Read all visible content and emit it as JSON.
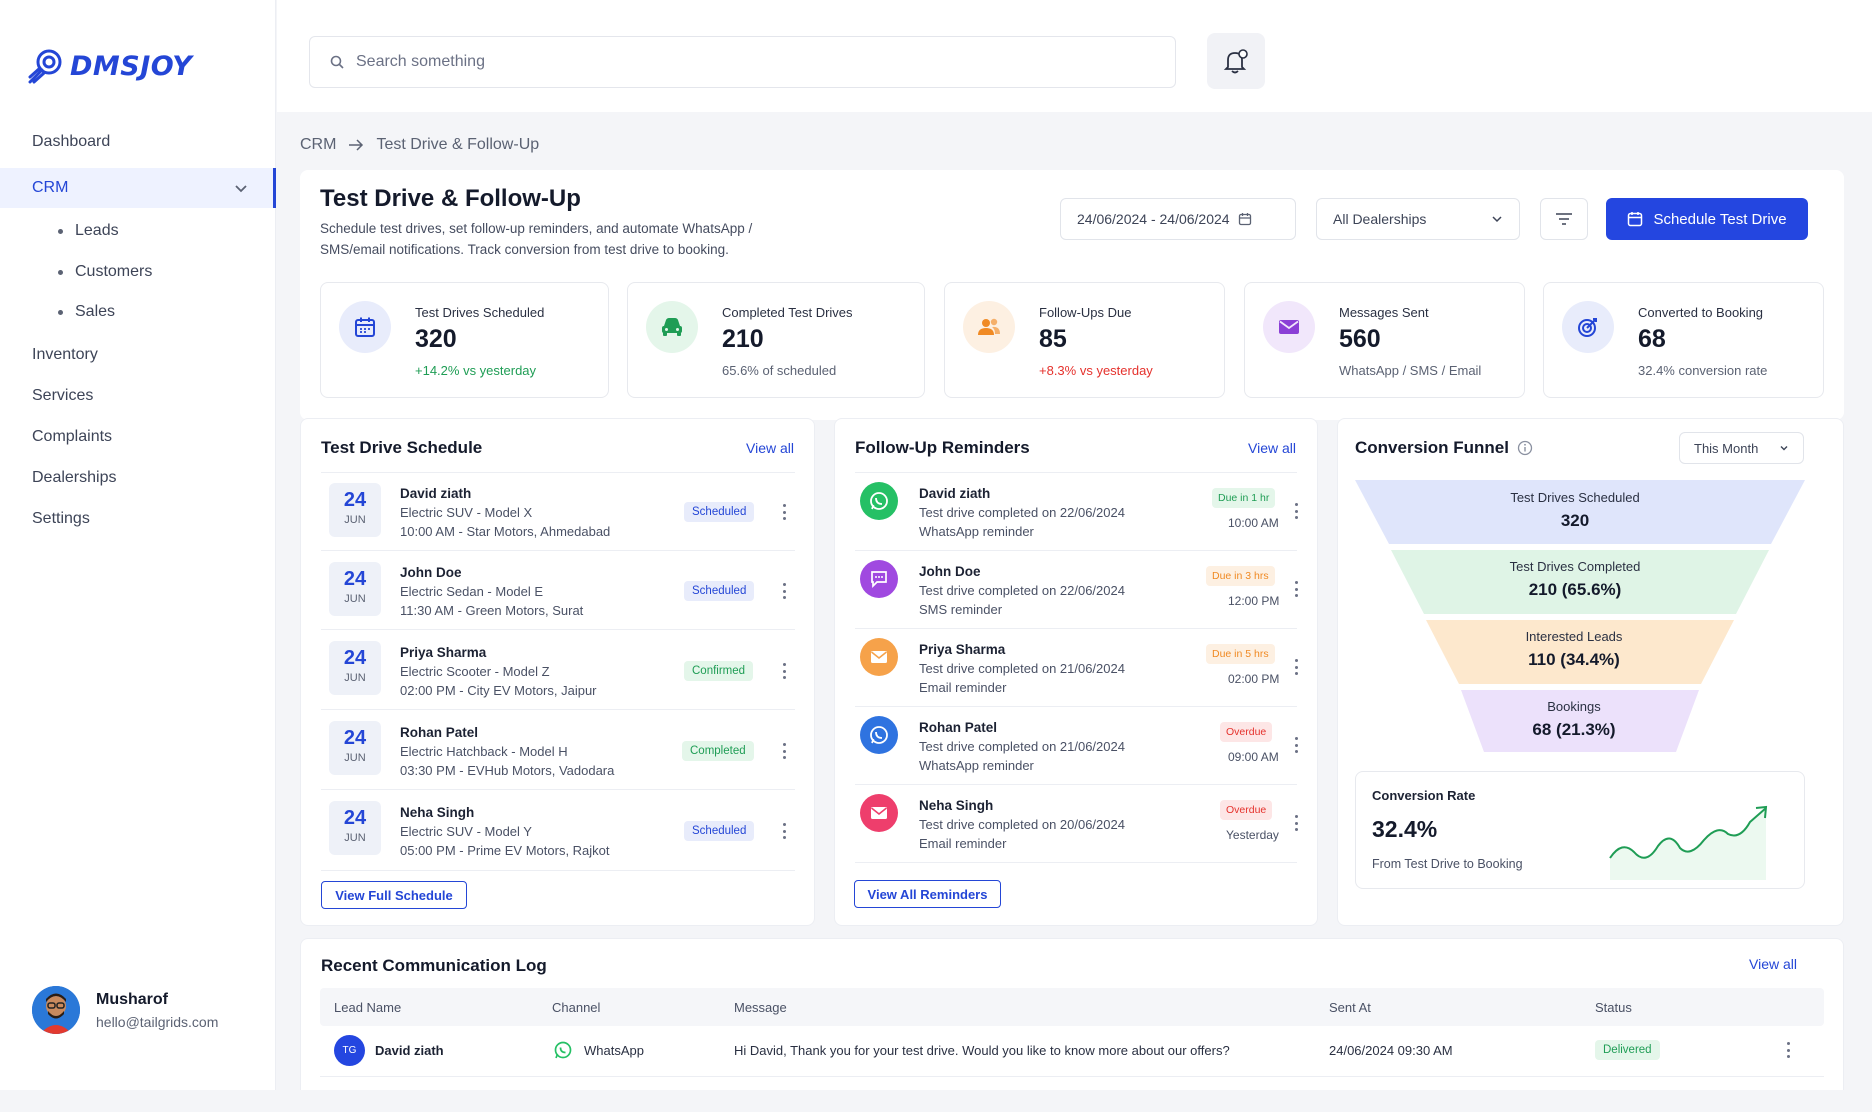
{
  "app": {
    "name": "DMSJOY"
  },
  "sidebar": {
    "items": [
      {
        "label": "Dashboard"
      },
      {
        "label": "CRM"
      },
      {
        "label": "Inventory"
      },
      {
        "label": "Services"
      },
      {
        "label": "Complaints"
      },
      {
        "label": "Dealerships"
      },
      {
        "label": "Settings"
      }
    ],
    "crm_sub": [
      {
        "label": "Leads"
      },
      {
        "label": "Customers"
      },
      {
        "label": "Sales"
      }
    ],
    "user": {
      "name": "Musharof",
      "email": "hello@tailgrids.com"
    }
  },
  "search": {
    "placeholder": "Search something"
  },
  "breadcrumb": {
    "root": "CRM",
    "current": "Test Drive & Follow-Up"
  },
  "page": {
    "title": "Test Drive & Follow-Up",
    "subtitle_line1": "Schedule test drives, set follow-up reminders, and automate WhatsApp /",
    "subtitle_line2": "SMS/email notifications. Track conversion from test drive to booking.",
    "date_range": "24/06/2024 - 24/06/2024",
    "dealership_select": "All Dealerships",
    "primary_button": "Schedule Test Drive"
  },
  "kpis": [
    {
      "label": "Test Drives Scheduled",
      "value": "320",
      "sub": "+14.2% vs yesterday",
      "icon": "calendar-icon"
    },
    {
      "label": "Completed Test Drives",
      "value": "210",
      "sub": "65.6% of scheduled",
      "icon": "car-icon"
    },
    {
      "label": "Follow-Ups Due",
      "value": "85",
      "sub": "+8.3% vs yesterday",
      "icon": "users-icon"
    },
    {
      "label": "Messages Sent",
      "value": "560",
      "sub": "WhatsApp / SMS / Email",
      "icon": "envelope-icon"
    },
    {
      "label": "Converted to Booking",
      "value": "68",
      "sub": "32.4% conversion rate",
      "icon": "target-icon"
    }
  ],
  "schedule": {
    "title": "Test Drive Schedule",
    "view_all": "View all",
    "button": "View Full Schedule",
    "rows": [
      {
        "day": "24",
        "month": "JUN",
        "name": "David ziath",
        "model": "Electric SUV - Model X",
        "time": "10:00 AM - Star Motors, Ahmedabad",
        "status": "Scheduled"
      },
      {
        "day": "24",
        "month": "JUN",
        "name": "John Doe",
        "model": "Electric Sedan - Model E",
        "time": "11:30 AM - Green Motors, Surat",
        "status": "Scheduled"
      },
      {
        "day": "24",
        "month": "JUN",
        "name": "Priya Sharma",
        "model": "Electric Scooter - Model Z",
        "time": "02:00 PM - City EV Motors, Jaipur",
        "status": "Confirmed"
      },
      {
        "day": "24",
        "month": "JUN",
        "name": "Rohan Patel",
        "model": "Electric Hatchback - Model H",
        "time": "03:30 PM - EVHub Motors, Vadodara",
        "status": "Completed"
      },
      {
        "day": "24",
        "month": "JUN",
        "name": "Neha Singh",
        "model": "Electric SUV - Model Y",
        "time": "05:00 PM - Prime EV Motors, Rajkot",
        "status": "Scheduled"
      }
    ]
  },
  "reminders": {
    "title": "Follow-Up Reminders",
    "view_all": "View all",
    "button": "View All Reminders",
    "rows": [
      {
        "name": "David ziath",
        "detail": "Test drive completed on 22/06/2024",
        "channel": "WhatsApp reminder",
        "due": "Due in 1 hr",
        "time": "10:00 AM",
        "icon": "whatsapp-icon"
      },
      {
        "name": "John Doe",
        "detail": "Test drive completed on 22/06/2024",
        "channel": "SMS reminder",
        "due": "Due in 3 hrs",
        "time": "12:00 PM",
        "icon": "sms-icon"
      },
      {
        "name": "Priya Sharma",
        "detail": "Test drive completed on 21/06/2024",
        "channel": "Email reminder",
        "due": "Due in 5 hrs",
        "time": "02:00 PM",
        "icon": "email-icon"
      },
      {
        "name": "Rohan Patel",
        "detail": "Test drive completed on 21/06/2024",
        "channel": "WhatsApp reminder",
        "due": "Overdue",
        "time": "09:00 AM",
        "icon": "whatsapp-icon"
      },
      {
        "name": "Neha Singh",
        "detail": "Test drive completed on 20/06/2024",
        "channel": "Email reminder",
        "due": "Overdue",
        "time": "Yesterday",
        "icon": "email-icon"
      }
    ]
  },
  "funnel": {
    "title": "Conversion Funnel",
    "period": "This Month",
    "stages": [
      {
        "label": "Test Drives Scheduled",
        "value": "320"
      },
      {
        "label": "Test Drives Completed",
        "value": "210 (65.6%)"
      },
      {
        "label": "Interested Leads",
        "value": "110 (34.4%)"
      },
      {
        "label": "Bookings",
        "value": "68 (21.3%)"
      }
    ],
    "rate_title": "Conversion Rate",
    "rate_value": "32.4%",
    "rate_sub": "From Test Drive to Booking"
  },
  "log": {
    "title": "Recent Communication Log",
    "view_all": "View all",
    "columns": [
      "Lead Name",
      "Channel",
      "Message",
      "Sent At",
      "Status"
    ],
    "rows": [
      {
        "initials": "TG",
        "lead": "David ziath",
        "channel": "WhatsApp",
        "message": "Hi David, Thank you for your test drive. Would you like to know more about our offers?",
        "sent_at": "24/06/2024 09:30 AM",
        "status": "Delivered"
      }
    ]
  },
  "colors": {
    "accent": "#2446e0",
    "positive": "#1f9d55",
    "negative": "#e5322d"
  }
}
